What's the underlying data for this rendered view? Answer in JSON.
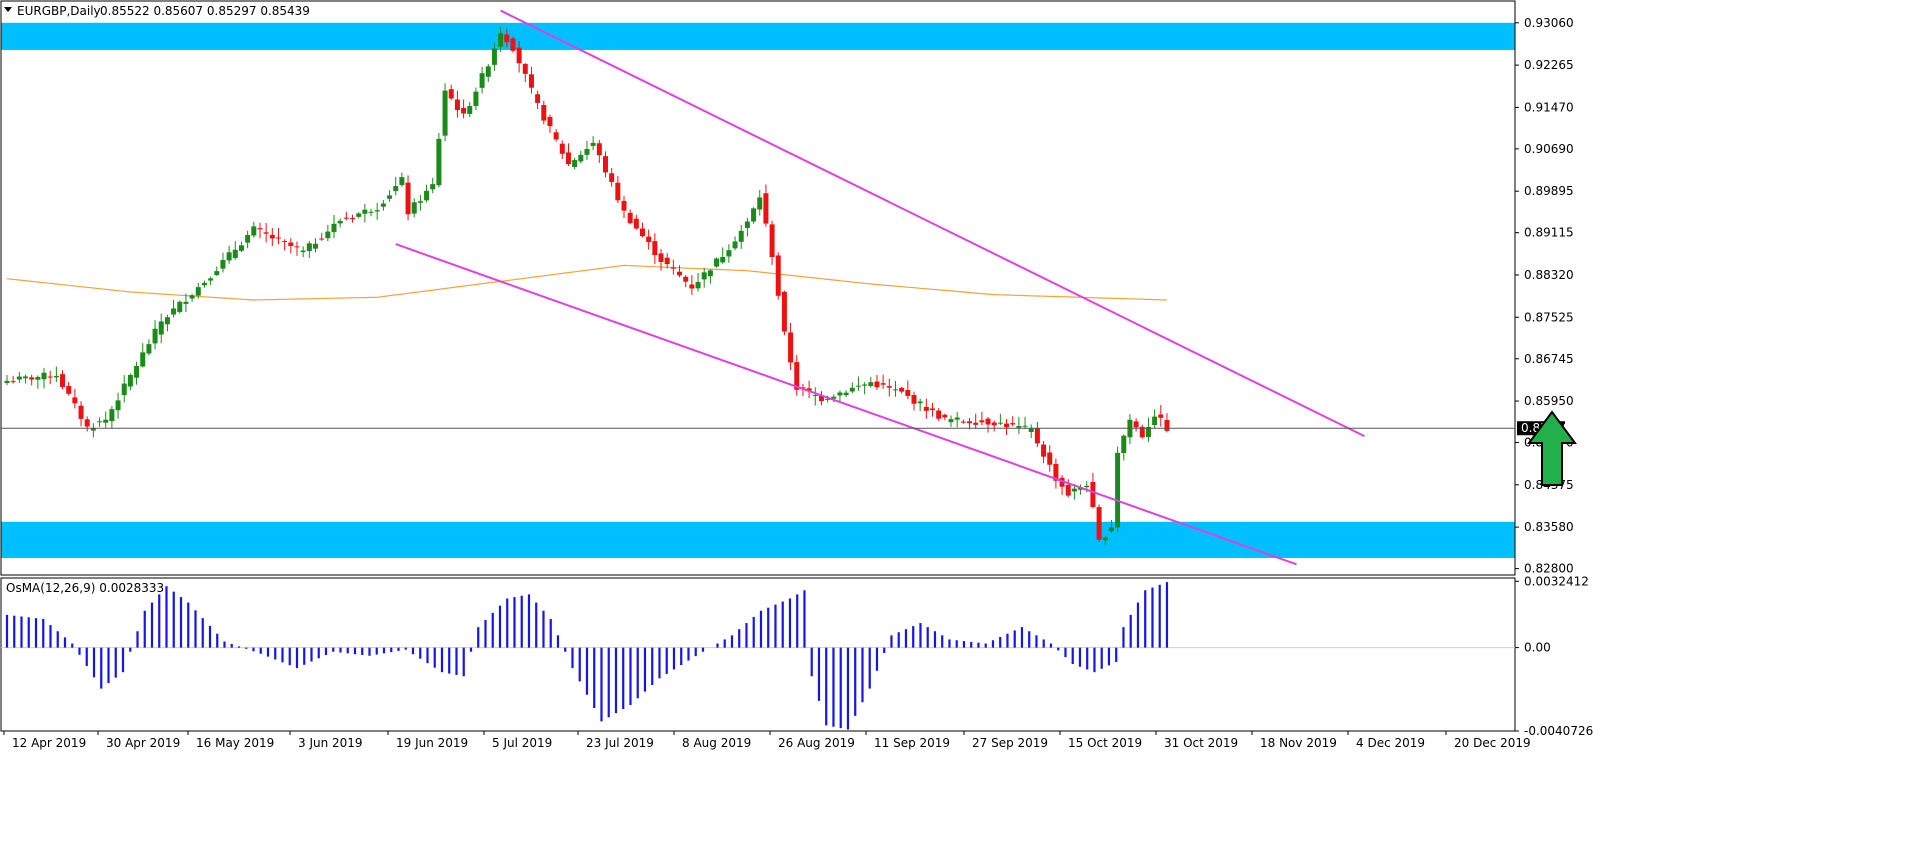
{
  "header": {
    "symbol": "EURGBP,Daily",
    "ohlc": "0.85522 0.85607 0.85297 0.85439"
  },
  "colors": {
    "bull": "#1a8a1a",
    "bear": "#ee1111",
    "zone": "#00bfff",
    "channel": "#e040e0",
    "ma": "#f2a33a",
    "histogram": "#1515e6",
    "price_tag_bg": "#000000",
    "arrow": "#22b04a"
  },
  "chart_data": [
    {
      "type": "candlestick",
      "y_ticks": [
        "0.93060",
        "0.92265",
        "0.91470",
        "0.90690",
        "0.89895",
        "0.89115",
        "0.88320",
        "0.87525",
        "0.86745",
        "0.85950",
        "0.85170",
        "0.84375",
        "0.83580",
        "0.82800"
      ],
      "y_tick_values": [
        0.9306,
        0.92265,
        0.9147,
        0.9069,
        0.89895,
        0.89115,
        0.8832,
        0.87525,
        0.86745,
        0.8595,
        0.8517,
        0.84375,
        0.8358,
        0.828
      ],
      "ylim": [
        0.8268,
        0.9347
      ],
      "x_ticks": [
        "12 Apr 2019",
        "30 Apr 2019",
        "16 May 2019",
        "3 Jun 2019",
        "19 Jun 2019",
        "5 Jul 2019",
        "23 Jul 2019",
        "8 Aug 2019",
        "26 Aug 2019",
        "11 Sep 2019",
        "27 Sep 2019",
        "15 Oct 2019",
        "31 Oct 2019",
        "18 Nov 2019",
        "4 Dec 2019",
        "20 Dec 2019"
      ],
      "current_price": "0.85439",
      "zones": [
        {
          "from": 0.9255,
          "to": 0.9306
        },
        {
          "from": 0.83,
          "to": 0.8368
        }
      ],
      "channel_lines": [
        {
          "from": [
            80,
            0.9329
          ],
          "to": [
            220,
            0.8529
          ]
        },
        {
          "from": [
            63,
            0.889
          ],
          "to": [
            209,
            0.8288
          ]
        }
      ],
      "anchors": [
        {
          "i": 0,
          "c": 0.8633
        },
        {
          "i": 8,
          "c": 0.8645
        },
        {
          "i": 13,
          "c": 0.8545
        },
        {
          "i": 16,
          "c": 0.856
        },
        {
          "i": 25,
          "c": 0.8745
        },
        {
          "i": 32,
          "c": 0.882
        },
        {
          "i": 40,
          "c": 0.8918
        },
        {
          "i": 48,
          "c": 0.8875
        },
        {
          "i": 54,
          "c": 0.8935
        },
        {
          "i": 60,
          "c": 0.896
        },
        {
          "i": 64,
          "c": 0.901
        },
        {
          "i": 65,
          "c": 0.895
        },
        {
          "i": 69,
          "c": 0.9
        },
        {
          "i": 71,
          "c": 0.918
        },
        {
          "i": 74,
          "c": 0.913
        },
        {
          "i": 78,
          "c": 0.923
        },
        {
          "i": 80,
          "c": 0.929
        },
        {
          "i": 82,
          "c": 0.926
        },
        {
          "i": 86,
          "c": 0.915
        },
        {
          "i": 91,
          "c": 0.904
        },
        {
          "i": 95,
          "c": 0.908
        },
        {
          "i": 100,
          "c": 0.895
        },
        {
          "i": 106,
          "c": 0.886
        },
        {
          "i": 111,
          "c": 0.881
        },
        {
          "i": 116,
          "c": 0.887
        },
        {
          "i": 120,
          "c": 0.893
        },
        {
          "i": 122,
          "c": 0.898
        },
        {
          "i": 124,
          "c": 0.887
        },
        {
          "i": 126,
          "c": 0.872
        },
        {
          "i": 128,
          "c": 0.862
        },
        {
          "i": 132,
          "c": 0.86
        },
        {
          "i": 140,
          "c": 0.863
        },
        {
          "i": 145,
          "c": 0.861
        },
        {
          "i": 152,
          "c": 0.856
        },
        {
          "i": 160,
          "c": 0.8555
        },
        {
          "i": 166,
          "c": 0.854
        },
        {
          "i": 170,
          "c": 0.845
        },
        {
          "i": 172,
          "c": 0.842
        },
        {
          "i": 175,
          "c": 0.844
        },
        {
          "i": 176,
          "c": 0.839
        },
        {
          "i": 177,
          "c": 0.833
        },
        {
          "i": 179,
          "c": 0.836
        },
        {
          "i": 180,
          "c": 0.85
        },
        {
          "i": 182,
          "c": 0.856
        },
        {
          "i": 184,
          "c": 0.853
        },
        {
          "i": 186,
          "c": 0.857
        },
        {
          "i": 188,
          "c": 0.8544
        }
      ],
      "ma": [
        {
          "i": 0,
          "v": 0.8825
        },
        {
          "i": 20,
          "v": 0.88
        },
        {
          "i": 40,
          "v": 0.8785
        },
        {
          "i": 60,
          "v": 0.879
        },
        {
          "i": 80,
          "v": 0.882
        },
        {
          "i": 100,
          "v": 0.885
        },
        {
          "i": 120,
          "v": 0.884
        },
        {
          "i": 140,
          "v": 0.8815
        },
        {
          "i": 160,
          "v": 0.8795
        },
        {
          "i": 188,
          "v": 0.8785
        }
      ]
    },
    {
      "type": "histogram",
      "label": "OsMA(12,26,9) 0.0028333",
      "y_ticks": [
        "0.0032412",
        "0.00",
        "-0.0040726"
      ],
      "y_tick_values": [
        0.0032412,
        0,
        -0.0040726
      ],
      "ylim": [
        -0.0040726,
        0.0034
      ],
      "anchors": [
        {
          "i": 0,
          "v": 0.0016
        },
        {
          "i": 5,
          "v": 0.0014
        },
        {
          "i": 9,
          "v": 0.0002
        },
        {
          "i": 13,
          "v": -0.002
        },
        {
          "i": 16,
          "v": -0.0012
        },
        {
          "i": 19,
          "v": 0.0018
        },
        {
          "i": 22,
          "v": 0.003
        },
        {
          "i": 25,
          "v": 0.0022
        },
        {
          "i": 30,
          "v": 0.0003
        },
        {
          "i": 35,
          "v": -0.0003
        },
        {
          "i": 40,
          "v": -0.001
        },
        {
          "i": 45,
          "v": -0.0002
        },
        {
          "i": 50,
          "v": -0.0004
        },
        {
          "i": 55,
          "v": -0.0001
        },
        {
          "i": 60,
          "v": -0.0012
        },
        {
          "i": 63,
          "v": -0.0014
        },
        {
          "i": 65,
          "v": 0.001
        },
        {
          "i": 69,
          "v": 0.0024
        },
        {
          "i": 72,
          "v": 0.0026
        },
        {
          "i": 75,
          "v": 0.0014
        },
        {
          "i": 78,
          "v": -0.001
        },
        {
          "i": 82,
          "v": -0.0036
        },
        {
          "i": 86,
          "v": -0.0028
        },
        {
          "i": 90,
          "v": -0.0015
        },
        {
          "i": 96,
          "v": -0.0002
        },
        {
          "i": 100,
          "v": 0.0006
        },
        {
          "i": 104,
          "v": 0.0018
        },
        {
          "i": 108,
          "v": 0.0024
        },
        {
          "i": 110,
          "v": 0.0028
        },
        {
          "i": 111,
          "v": -0.0014
        },
        {
          "i": 113,
          "v": -0.0038
        },
        {
          "i": 116,
          "v": -0.004
        },
        {
          "i": 119,
          "v": -0.002
        },
        {
          "i": 122,
          "v": 0.0006
        },
        {
          "i": 126,
          "v": 0.0012
        },
        {
          "i": 130,
          "v": 0.0004
        },
        {
          "i": 135,
          "v": 0.0002
        },
        {
          "i": 140,
          "v": 0.001
        },
        {
          "i": 144,
          "v": 0.0002
        },
        {
          "i": 147,
          "v": -0.0008
        },
        {
          "i": 150,
          "v": -0.0012
        },
        {
          "i": 153,
          "v": -0.0007
        },
        {
          "i": 154,
          "v": 0.001
        },
        {
          "i": 157,
          "v": 0.0028
        },
        {
          "i": 160,
          "v": 0.0032
        }
      ]
    }
  ]
}
